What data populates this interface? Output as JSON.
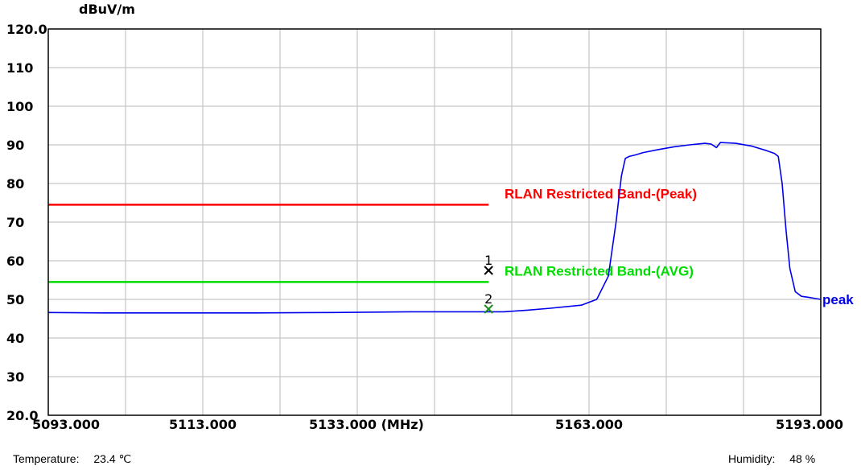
{
  "chart_data": {
    "type": "line",
    "ylabel": "dBuV/m",
    "ylim": [
      20.0,
      120.0
    ],
    "xlim": [
      5093.0,
      5193.0
    ],
    "y_ticks": [
      "20.0",
      "30",
      "40",
      "50",
      "60",
      "70",
      "80",
      "90",
      "100",
      "110",
      "120.0"
    ],
    "x_ticks": [
      {
        "value": 5093.0,
        "label": "5093.000"
      },
      {
        "value": 5113.0,
        "label": "5113.000"
      },
      {
        "value": 5133.0,
        "label": "5133.000  (MHz)"
      },
      {
        "value": 5163.0,
        "label": "5163.000"
      },
      {
        "value": 5193.0,
        "label": "5193.000"
      }
    ],
    "grid": true,
    "series": [
      {
        "name": "peak",
        "color": "#0000ee",
        "x": [
          5093.0,
          5100.0,
          5110.0,
          5120.0,
          5130.0,
          5140.0,
          5150.0,
          5152.0,
          5155.0,
          5158.0,
          5162.0,
          5164.0,
          5165.5,
          5166.5,
          5167.2,
          5167.7,
          5168.2,
          5169.0,
          5170.0,
          5172.0,
          5174.0,
          5176.0,
          5178.0,
          5178.8,
          5179.5,
          5180.0,
          5182.0,
          5184.0,
          5186.0,
          5187.0,
          5187.5,
          5188.0,
          5188.5,
          5189.0,
          5189.7,
          5190.5,
          5191.5,
          5193.0
        ],
        "y": [
          46.6,
          46.5,
          46.5,
          46.5,
          46.6,
          46.8,
          46.8,
          46.8,
          47.2,
          47.7,
          48.5,
          50.0,
          56.0,
          70.0,
          82.0,
          86.5,
          87.0,
          87.4,
          88.0,
          88.8,
          89.5,
          90.0,
          90.4,
          90.2,
          89.3,
          90.6,
          90.4,
          89.7,
          88.5,
          87.8,
          87.0,
          80.0,
          68.0,
          58.0,
          52.0,
          50.8,
          50.5,
          50.0
        ]
      }
    ],
    "limit_lines": [
      {
        "label": "RLAN Restricted Band-(Peak)",
        "y": 74.5,
        "x_end": 5150.0,
        "color": "#ff0000"
      },
      {
        "label": "RLAN Restricted Band-(AVG)",
        "y": 54.5,
        "x_end": 5150.0,
        "color": "#00dd00"
      }
    ],
    "markers": [
      {
        "label": "1",
        "x": 5150.0,
        "y": 57.5,
        "color": "#000000"
      },
      {
        "label": "2",
        "x": 5150.0,
        "y": 47.5,
        "color": "#1a8a1a"
      }
    ]
  },
  "footer": {
    "temperature_label": "Temperature:",
    "temperature_value": "23.4 ℃",
    "humidity_label": "Humidity:",
    "humidity_value": "48 %"
  }
}
